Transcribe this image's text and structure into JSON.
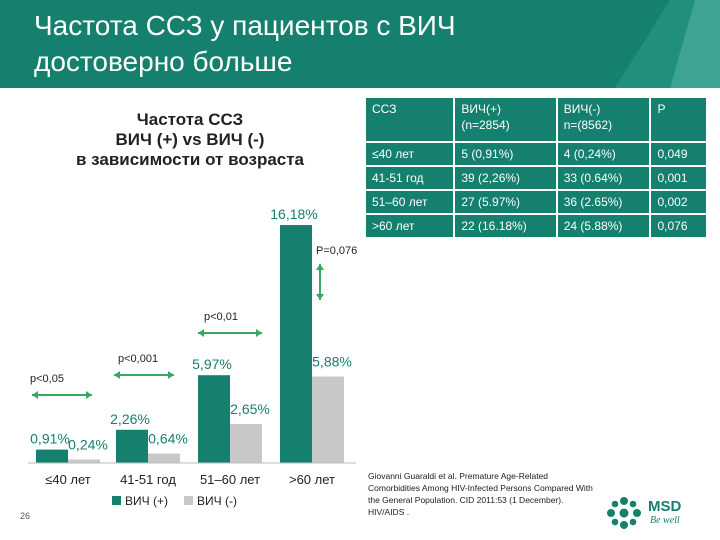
{
  "slide": {
    "title": "Частота ССЗ у пациентов с ВИЧ достоверно больше",
    "page_number": "26",
    "citation": "Giovanni Guaraldi et al. Premature Age-Related Comorbidities Among HIV-Infected Persons Compared With the General Population. CID 2011:53 (1 December). HIV/AIDS .",
    "logo": {
      "name": "MSD",
      "tagline": "Be well"
    },
    "colors": {
      "header": "#15806e",
      "hiv_pos": "#15806e",
      "hiv_neg": "#c8c8c8",
      "accent_green": "#3aa860"
    }
  },
  "table": {
    "headers": [
      "ССЗ",
      "ВИЧ(+)\n(n=2854)",
      "ВИЧ(-)\nn=(8562)",
      "P"
    ],
    "rows": [
      [
        "≤40 лет",
        "5 (0,91%)",
        "4 (0,24%)",
        "0,049"
      ],
      [
        "41-51 год",
        "39 (2,26%)",
        "33 (0.64%)",
        "0,001"
      ],
      [
        "51–60 лет",
        "27 (5.97%)",
        "36 (2.65%)",
        "0,002"
      ],
      [
        ">60 лет",
        "22 (16.18%)",
        "24 (5.88%)",
        "0,076"
      ]
    ]
  },
  "chart_data": {
    "type": "bar",
    "title": "Частота ССЗ\nВИЧ (+) vs ВИЧ (-)\nв зависимости от возраста",
    "categories": [
      "≤40 лет",
      "41-51 год",
      "51–60 лет",
      ">60 лет"
    ],
    "series": [
      {
        "name": "ВИЧ (+)",
        "values": [
          0.91,
          2.26,
          5.97,
          16.18
        ],
        "labels": [
          "0,91%",
          "2,26%",
          "5,97%",
          "16,18%"
        ]
      },
      {
        "name": "ВИЧ (-)",
        "values": [
          0.24,
          0.64,
          2.65,
          5.88
        ],
        "labels": [
          "0,24%",
          "0,64%",
          "2,65%",
          "5,88%"
        ]
      }
    ],
    "annotations": [
      "p<0,05",
      "p<0,001",
      "p<0,01",
      "P=0,076"
    ],
    "legend_position": "bottom",
    "grid": false,
    "ylim": [
      0,
      17
    ]
  }
}
